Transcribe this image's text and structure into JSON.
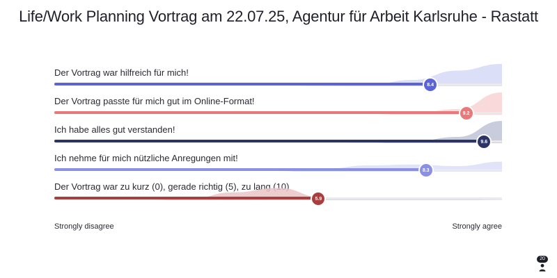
{
  "title": "Life/Work Planning Vortrag am 22.07.25, Agentur für Arbeit Karlsruhe - Rastatt",
  "scale": {
    "min_label": "Strongly disagree",
    "max_label": "Strongly agree",
    "min": 0,
    "max": 10
  },
  "items": [
    {
      "label": "Der Vortrag war hilfreich für mich!",
      "value": 8.4,
      "value_text": "8.4",
      "color": "#5b63d6",
      "light_color": "#d6d9f7",
      "distribution": [
        0,
        0,
        0,
        0,
        0,
        0,
        0.02,
        0.05,
        0.28,
        0.7,
        1.0
      ]
    },
    {
      "label": "Der Vortrag passte für mich gut im Online-Format!",
      "value": 9.2,
      "value_text": "9.2",
      "color": "#e9787a",
      "light_color": "#f8d2d3",
      "distribution": [
        0,
        0,
        0,
        0,
        0,
        0,
        0,
        0,
        0.05,
        0.25,
        1.0
      ]
    },
    {
      "label": "Ich habe alles gut verstanden!",
      "value": 9.6,
      "value_text": "9.6",
      "color": "#2c3464",
      "light_color": "#bfc3d6",
      "distribution": [
        0,
        0,
        0,
        0,
        0,
        0,
        0,
        0.01,
        0.07,
        0.28,
        1.0
      ]
    },
    {
      "label": "Ich nehme für mich nützliche Anregungen mit!",
      "value": 8.3,
      "value_text": "8.3",
      "color": "#8a90e2",
      "light_color": "#dcdff8",
      "distribution": [
        0,
        0,
        0,
        0,
        0,
        0,
        0.12,
        0.28,
        0.32,
        0.25,
        0.45
      ]
    },
    {
      "label": "Der Vortrag war zu kurz (0), gerade richtig (5), zu lang (10)",
      "value": 5.9,
      "value_text": "5.9",
      "color": "#a83e3e",
      "light_color": "#eac4c4",
      "distribution": [
        0,
        0,
        0,
        0.05,
        0.35,
        0.55,
        0.12,
        0.1,
        0.06,
        0.04,
        0.02
      ]
    }
  ],
  "participants": {
    "count": "20",
    "icon": "person-icon"
  }
}
